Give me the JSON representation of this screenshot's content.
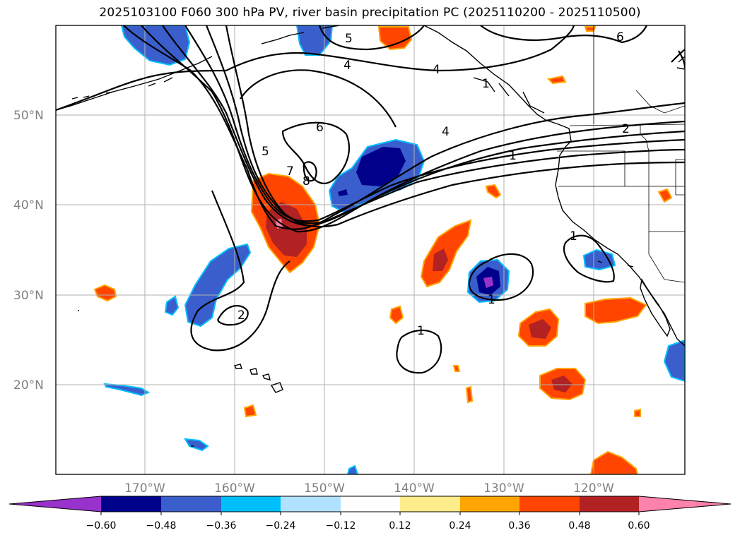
{
  "title": "2025103100 F060 300 hPa PV, river basin precipitation PC (2025110200 - 2025110500)",
  "map": {
    "lon_range": [
      -180,
      -110
    ],
    "lat_range": [
      10,
      60
    ],
    "lat_labels": [
      {
        "lat": 50,
        "text": "50°N"
      },
      {
        "lat": 40,
        "text": "40°N"
      },
      {
        "lat": 30,
        "text": "30°N"
      },
      {
        "lat": 20,
        "text": "20°N"
      }
    ],
    "lon_labels": [
      {
        "lon": -170,
        "text": "170°W"
      },
      {
        "lon": -160,
        "text": "160°W"
      },
      {
        "lon": -150,
        "text": "150°W"
      },
      {
        "lon": -140,
        "text": "140°W"
      },
      {
        "lon": -130,
        "text": "130°W"
      },
      {
        "lon": -120,
        "text": "120°W"
      }
    ],
    "contour_labels": [
      "4",
      "4",
      "5",
      "6",
      "5",
      "7",
      "8",
      "4",
      "1",
      "6",
      "2",
      "1",
      "1",
      "2",
      "1",
      "1"
    ]
  },
  "colorbar": {
    "colors": [
      "#9932cc",
      "#00008b",
      "#3a5fcd",
      "#00bfff",
      "#b0e2ff",
      "#ffffff",
      "#ffec8b",
      "#ffa500",
      "#ff4500",
      "#b22222",
      "#ff82ab"
    ],
    "ticks": [
      "−0.60",
      "−0.48",
      "−0.36",
      "−0.24",
      "−0.12",
      "0.12",
      "0.24",
      "0.36",
      "0.48",
      "0.60"
    ]
  }
}
